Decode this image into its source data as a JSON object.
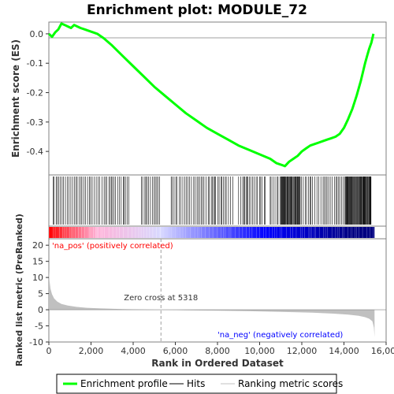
{
  "chart_data": [
    {
      "type": "line",
      "title": "Enrichment plot: MODULE_72",
      "ylabel": "Enrichment score (ES)",
      "xlim": [
        0,
        16000
      ],
      "ylim": [
        -0.48,
        0.04
      ],
      "yticks": [
        0.0,
        -0.1,
        -0.2,
        -0.3,
        -0.4
      ],
      "ytick_labels": [
        "0.0",
        "-0.1",
        "-0.2",
        "-0.3",
        "-0.4"
      ],
      "grid": false,
      "series": [
        {
          "name": "Enrichment profile",
          "color": "#00ff00",
          "x": [
            0,
            150,
            300,
            450,
            600,
            750,
            900,
            1050,
            1200,
            1350,
            1500,
            1700,
            1900,
            2100,
            2300,
            2600,
            3000,
            3500,
            4000,
            4500,
            5000,
            5500,
            6000,
            6500,
            7000,
            7500,
            8000,
            8500,
            9000,
            9500,
            10000,
            10500,
            10800,
            11000,
            11200,
            11400,
            11600,
            11800,
            12000,
            12200,
            12400,
            12600,
            12800,
            13000,
            13200,
            13400,
            13600,
            13800,
            14000,
            14200,
            14400,
            14600,
            14800,
            15000,
            15100,
            15200,
            15300,
            15400
          ],
          "y": [
            0.0,
            -0.01,
            0.005,
            0.015,
            0.035,
            0.03,
            0.025,
            0.02,
            0.03,
            0.025,
            0.02,
            0.015,
            0.01,
            0.005,
            0.0,
            -0.015,
            -0.04,
            -0.075,
            -0.11,
            -0.145,
            -0.18,
            -0.21,
            -0.24,
            -0.27,
            -0.295,
            -0.32,
            -0.34,
            -0.36,
            -0.38,
            -0.395,
            -0.41,
            -0.425,
            -0.44,
            -0.445,
            -0.45,
            -0.435,
            -0.425,
            -0.415,
            -0.4,
            -0.39,
            -0.38,
            -0.375,
            -0.37,
            -0.365,
            -0.36,
            -0.355,
            -0.35,
            -0.34,
            -0.32,
            -0.29,
            -0.255,
            -0.21,
            -0.16,
            -0.1,
            -0.075,
            -0.05,
            -0.03,
            0.0
          ]
        }
      ]
    },
    {
      "type": "bar",
      "series": [
        {
          "name": "Hits",
          "color": "#000000",
          "ranges": [
            [
              200,
              3800
            ],
            [
              4400,
              5300
            ],
            [
              5800,
              8800
            ],
            [
              9000,
              10300
            ],
            [
              10500,
              15300
            ]
          ],
          "dense_ranges": [
            [
              10900,
              11900
            ],
            [
              14000,
              15300
            ]
          ]
        }
      ]
    },
    {
      "type": "heatmap",
      "colors": [
        "#ff0000",
        "#ffb3d9",
        "#d9d9ff",
        "#0000ff",
        "#000080"
      ],
      "stops": [
        0,
        2300,
        5300,
        10300,
        14400,
        15450
      ]
    },
    {
      "type": "area",
      "xlabel": "Rank in Ordered Dataset",
      "ylabel": "Ranked list metric (PreRanked)",
      "xlim": [
        0,
        16000
      ],
      "ylim": [
        -10,
        22
      ],
      "xticks": [
        0,
        2000,
        4000,
        6000,
        8000,
        10000,
        12000,
        14000,
        16000
      ],
      "xtick_labels": [
        "0",
        "2,000",
        "4,000",
        "6,000",
        "8,000",
        "10,000",
        "12,000",
        "14,000",
        "16,000"
      ],
      "yticks": [
        20,
        15,
        10,
        5,
        0,
        -5,
        -10
      ],
      "ytick_labels": [
        "20",
        "15",
        "10",
        "5",
        "0",
        "-5",
        "-10"
      ],
      "series": [
        {
          "name": "Ranking metric scores",
          "color": "#c0c0c0",
          "x": [
            0,
            30,
            80,
            150,
            250,
            400,
            600,
            900,
            1300,
            1800,
            2500,
            3500,
            4500,
            5318,
            6500,
            8000,
            9500,
            11000,
            12500,
            13500,
            14200,
            14700,
            15000,
            15200,
            15350,
            15420,
            15450
          ],
          "y": [
            12.5,
            9.0,
            6.5,
            4.8,
            3.5,
            2.5,
            1.8,
            1.3,
            0.9,
            0.6,
            0.4,
            0.2,
            0.1,
            0.0,
            -0.15,
            -0.3,
            -0.45,
            -0.65,
            -0.9,
            -1.2,
            -1.5,
            -1.9,
            -2.3,
            -2.8,
            -3.6,
            -5.5,
            -8.5
          ]
        }
      ],
      "annotations": {
        "zero_cross": 5318,
        "zero_cross_label": "Zero cross at 5318",
        "pos_label": "'na_pos' (positively correlated)",
        "neg_label": "'na_neg' (negatively correlated)",
        "pos_color": "#ff0000",
        "neg_color": "#0000ff"
      }
    }
  ],
  "legend": {
    "placement": "bottom",
    "items": [
      {
        "label": "Enrichment profile",
        "color": "#00ff00"
      },
      {
        "label": "Hits",
        "color": "#000000"
      },
      {
        "label": "Ranking metric scores",
        "color": "#c0c0c0"
      }
    ]
  }
}
